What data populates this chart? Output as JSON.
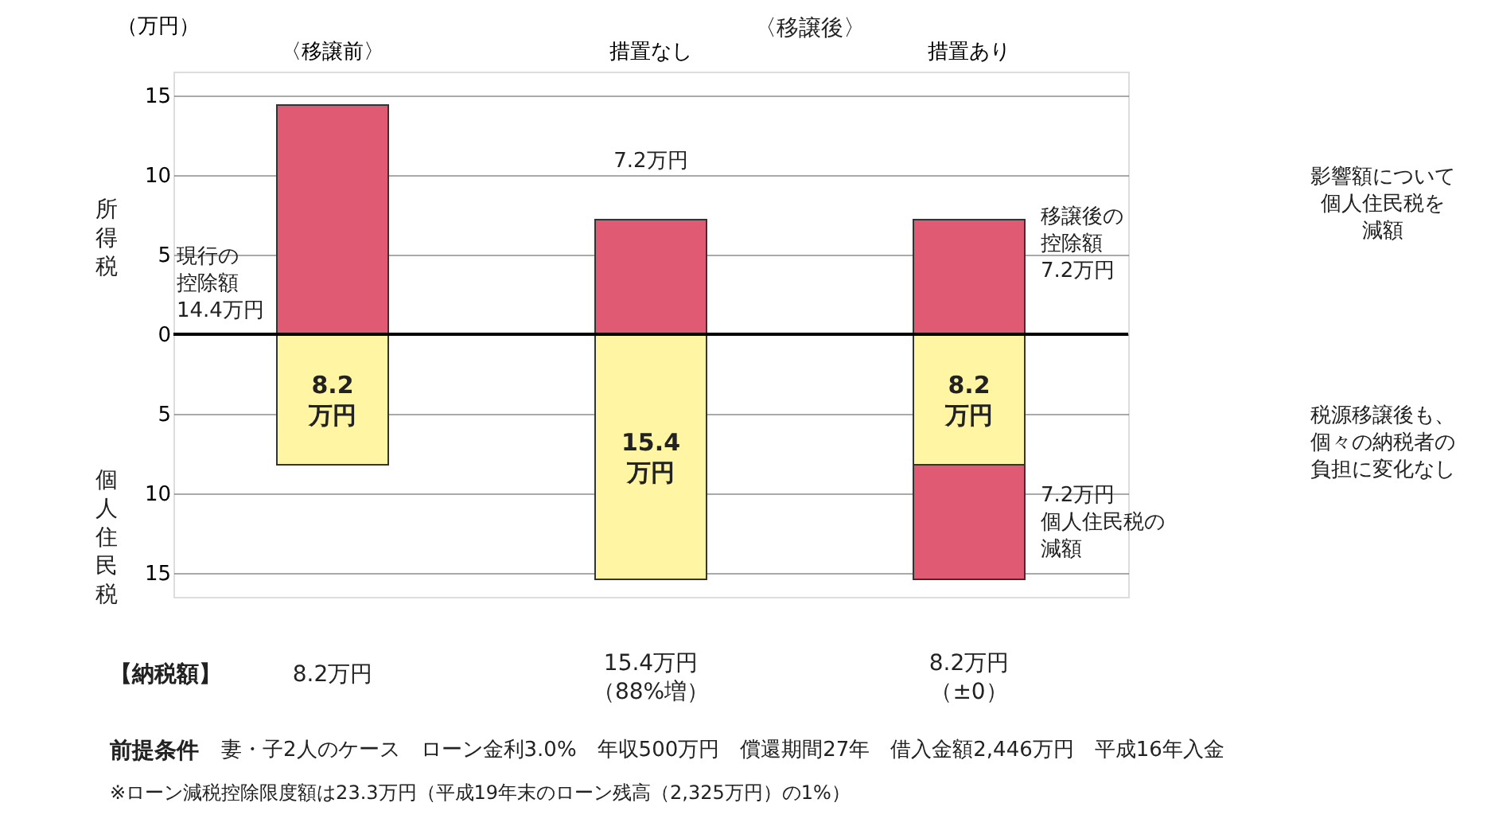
{
  "chart_data": {
    "type": "bar",
    "stacked": true,
    "ylabel": "（万円）",
    "categories": [
      "〈移譲前〉",
      "措置なし",
      "措置あり"
    ],
    "series": [
      {
        "color": "#e05a73",
        "values": [
          14.4,
          7.2,
          7.2
        ]
      },
      {
        "color": "#fff5a3",
        "values": [
          -8.2,
          -15.4,
          -8.2
        ]
      },
      {
        "color": "#e05a73",
        "values": [
          null,
          null,
          -7.2
        ]
      }
    ],
    "ylim": [
      -16.5,
      16.5
    ],
    "yticks": [
      {
        "value": -15,
        "label": "15"
      },
      {
        "value": -10,
        "label": "10"
      },
      {
        "value": -5,
        "label": "5"
      },
      0,
      5,
      10,
      15
    ],
    "grid": "y",
    "annotations": [
      "〈移譲後〉",
      "所得税",
      "個人住民税",
      "現行の控除額14.4万円",
      "7.2万円",
      "移譲後の控除額7.2万円",
      "7.2万円個人住民税の減額",
      "影響額について個人住民税を減額",
      "税源移譲後も、個々の納税者の負担に変化なし",
      "【納税額】",
      "8.2万円",
      "15.4万円（88%増）",
      "8.2万円（±0）",
      "前提条件",
      "8.2万円",
      "15.4万円",
      "8.2万円",
      "妻・子2人のケース　ローン金利3.0%　年収500万円　償還期間27年　借入金額2,446万円　平成16年入金",
      "※ローン減税控除限度額は23.3万円（平成19年末のローン残高（2,325万円）の1%）"
    ]
  }
}
